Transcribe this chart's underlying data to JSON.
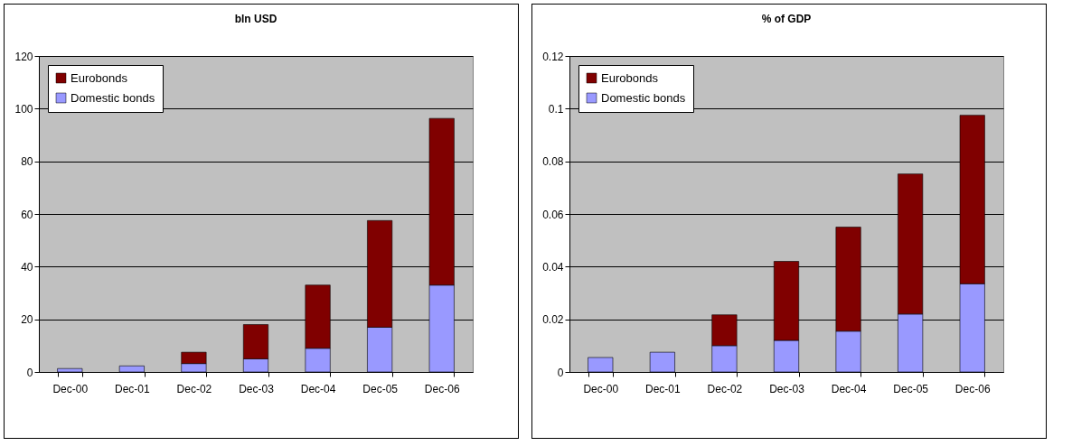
{
  "chart_data": [
    {
      "type": "bar",
      "title": "bln USD",
      "categories": [
        "Dec-00",
        "Dec-01",
        "Dec-02",
        "Dec-03",
        "Dec-04",
        "Dec-05",
        "Dec-06"
      ],
      "stacked": true,
      "series": [
        {
          "name": "Domestic bonds",
          "color": "#9999ff",
          "values": [
            1.3,
            2.3,
            3.2,
            5,
            9,
            17,
            33
          ]
        },
        {
          "name": "Eurobonds",
          "color": "#800000",
          "values": [
            null,
            null,
            4.3,
            13,
            24,
            40.5,
            63.3
          ]
        }
      ],
      "ylim": [
        0,
        120
      ],
      "yticks": [
        0,
        20,
        40,
        60,
        80,
        100,
        120
      ],
      "grid": "y",
      "legend": "top left"
    },
    {
      "type": "bar",
      "title": "% of GDP",
      "categories": [
        "Dec-00",
        "Dec-01",
        "Dec-02",
        "Dec-03",
        "Dec-04",
        "Dec-05",
        "Dec-06"
      ],
      "stacked": true,
      "series": [
        {
          "name": "Domestic bonds",
          "color": "#9999ff",
          "values": [
            0.0055,
            0.0075,
            0.01,
            0.012,
            0.0155,
            0.022,
            0.0335
          ]
        },
        {
          "name": "Eurobonds",
          "color": "#800000",
          "values": [
            null,
            null,
            0.0117,
            0.03,
            0.0395,
            0.0532,
            0.064
          ]
        }
      ],
      "ylim": [
        0,
        0.12
      ],
      "yticks": [
        0,
        0.02,
        0.04,
        0.06,
        0.08,
        0.1,
        0.12
      ],
      "grid": "y",
      "legend": "top left"
    }
  ]
}
